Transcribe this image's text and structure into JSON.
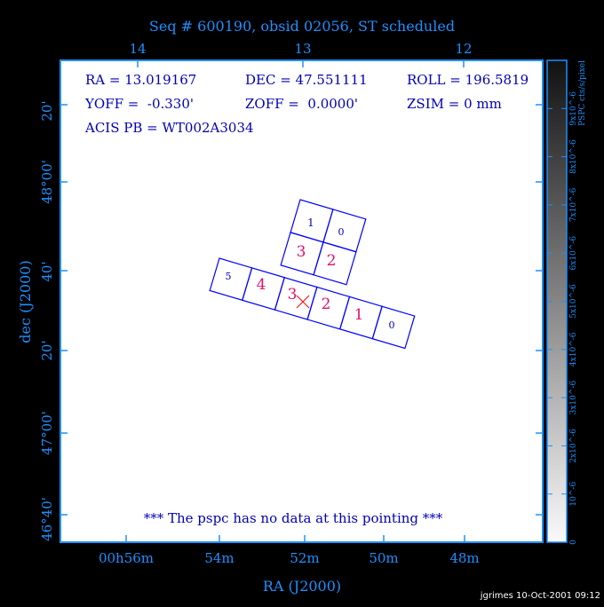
{
  "title": "Seq # 600190, obsid 02056, ST scheduled",
  "info": {
    "ra": "RA = 13.019167",
    "dec": "DEC = 47.551111",
    "roll": "ROLL = 196.5819",
    "yoff": "YOFF =  -0.330'",
    "zoff": "ZOFF =  0.0000'",
    "zsim": "ZSIM = 0 mm",
    "acis_pb": "ACIS PB = WT002A3034"
  },
  "message": "*** The pspc has no data at this pointing ***",
  "axes": {
    "xlabel": "RA (J2000)",
    "ylabel": "dec (J2000)",
    "x_ticks": [
      "00h56m",
      "54m",
      "52m",
      "50m",
      "48m"
    ],
    "top_ticks": [
      "14",
      "13",
      "12"
    ],
    "y_ticks": [
      "20'",
      "48°00'",
      "40'",
      "20'",
      "47°00'",
      "46°40'"
    ]
  },
  "colorbar": {
    "label": "PSPC cts/s/pixel",
    "ticks": [
      "0",
      "10^-6",
      "2x10^-6",
      "3x10^-6",
      "4x10^-6",
      "5x10^-6",
      "6x10^-6",
      "7x10^-6",
      "8x10^-6",
      "9x10^-6"
    ]
  },
  "chips": {
    "acis_i": [
      "1",
      "0",
      "3",
      "2"
    ],
    "acis_s": [
      "5",
      "4",
      "3",
      "2",
      "1",
      "0"
    ]
  },
  "colors": {
    "axis": "#1e90ff",
    "chip_outline": "#0000ff",
    "active_chip_label": "#e0106a",
    "inactive_chip_label": "#0000b4",
    "aimpoint": "#ff0000"
  },
  "credit": "jgrimes 10-Oct-2001 09:12"
}
